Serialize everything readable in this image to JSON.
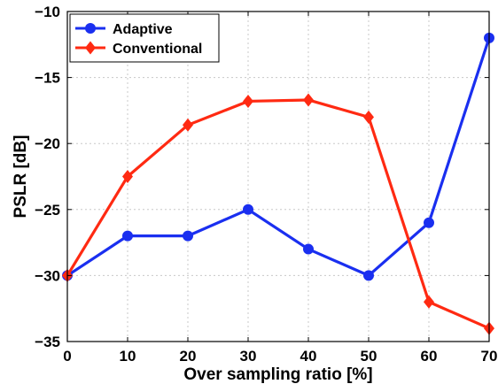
{
  "chart_data": {
    "type": "line",
    "xlabel": "Over sampling ratio [%]",
    "ylabel": "PSLR [dB]",
    "x": [
      0,
      10,
      20,
      30,
      40,
      50,
      60,
      70
    ],
    "xlim": [
      0,
      70
    ],
    "ylim": [
      -35,
      -10
    ],
    "x_ticks": [
      "0",
      "10",
      "20",
      "30",
      "40",
      "50",
      "60",
      "70"
    ],
    "y_ticks": [
      "-10",
      "-15",
      "-20",
      "-25",
      "-30",
      "-35"
    ],
    "y_tick_values": [
      -10,
      -15,
      -20,
      -25,
      -30,
      -35
    ],
    "grid": true,
    "legend_position": "top-left",
    "series": [
      {
        "name": "Adaptive",
        "values": [
          -30,
          -27,
          -27,
          -25,
          -28,
          -30,
          -26,
          -12
        ],
        "color": "#1a2ff0",
        "marker": "circle"
      },
      {
        "name": "Conventional",
        "values": [
          -30,
          -22.5,
          -18.6,
          -16.8,
          -16.7,
          -18,
          -32,
          -34
        ],
        "color": "#ff2a12",
        "marker": "diamond"
      }
    ]
  }
}
